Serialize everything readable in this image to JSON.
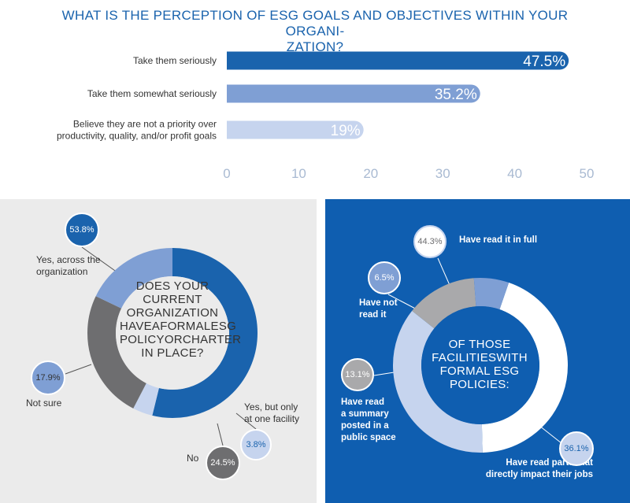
{
  "chart_data": [
    {
      "type": "bar",
      "orientation": "horizontal",
      "title": "WHAT IS THE PERCEPTION OF ESG GOALS AND OBJECTIVES WITHIN YOUR ORGANIZATION?",
      "categories": [
        "Take them seriously",
        "Take them somewhat seriously",
        "Believe they are not a priority over productivity, quality, and/or profit goals"
      ],
      "category_lines": [
        [
          "Take them seriously"
        ],
        [
          "Take them somewhat seriously"
        ],
        [
          "Believe they are not a priority over",
          "productivity, quality, and/or profit goals"
        ]
      ],
      "values": [
        47.5,
        35.2,
        19
      ],
      "value_labels": [
        "47.5%",
        "35.2%",
        "19%"
      ],
      "colors": [
        "#1a63ad",
        "#7f9fd4",
        "#c6d4ee"
      ],
      "xlim": [
        0,
        50
      ],
      "ticks": [
        "0",
        "10",
        "20",
        "30",
        "40",
        "50"
      ]
    },
    {
      "type": "pie",
      "title": "DOES YOUR CURRENT ORGANIZATION HAVEAFORMALESG POLICYORCHARTER IN PLACE?",
      "title_lines": [
        "DOES YOUR",
        "CURRENT",
        "ORGANIZATION",
        "HAVEAFORMALESG",
        "POLICYORCHARTER",
        "IN PLACE?"
      ],
      "labels": [
        "Yes, across the organization",
        "Yes, but only at one facility",
        "No",
        "Not sure"
      ],
      "values": [
        53.8,
        3.8,
        24.5,
        17.9
      ],
      "value_labels": [
        "53.8%",
        "3.8%",
        "24.5%",
        "17.9%"
      ],
      "colors": [
        "#1a63ad",
        "#c6d4ee",
        "#6e6e70",
        "#7f9fd4"
      ]
    },
    {
      "type": "pie",
      "title": "OF THOSE FACILITIESWITH FORMAL ESG POLICIES:",
      "title_lines": [
        "OF THOSE",
        "FACILITIESWITH",
        "FORMAL ESG",
        "POLICIES:"
      ],
      "labels": [
        "Have read it in full",
        "Have read parts that directly impact their jobs",
        "Have read a summary posted in a public space",
        "Have not read it"
      ],
      "values": [
        44.3,
        36.1,
        13.1,
        6.5
      ],
      "value_labels": [
        "44.3%",
        "36.1%",
        "13.1%",
        "6.5%"
      ],
      "colors": [
        "#ffffff",
        "#c6d4ee",
        "#a9a9ab",
        "#7f9fd4"
      ]
    }
  ],
  "left_labels": {
    "yes_org": [
      "Yes, across the",
      "organization"
    ],
    "yes_one": [
      "Yes, but only",
      "at one facility"
    ],
    "no": [
      "No"
    ],
    "not_sure": [
      "Not sure"
    ]
  },
  "right_labels": {
    "full": [
      "Have read it in full"
    ],
    "parts": [
      "Have read parts that",
      "directly impact their jobs"
    ],
    "summary": [
      "Have read",
      "a summary",
      "posted in a",
      "public space"
    ],
    "not_read": [
      "Have not",
      "read it"
    ]
  }
}
